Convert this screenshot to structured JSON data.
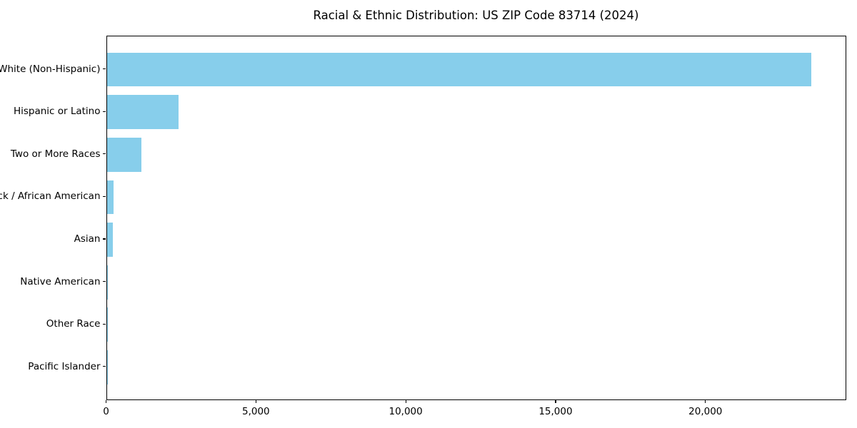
{
  "chart_data": {
    "type": "bar",
    "orientation": "horizontal",
    "title": "Racial & Ethnic Distribution: US ZIP Code 83714 (2024)",
    "categories": [
      "White (Non-Hispanic)",
      "Hispanic or Latino",
      "Two or More Races",
      "Black / African American",
      "Asian",
      "Native American",
      "Other Race",
      "Pacific Islander"
    ],
    "values": [
      23500,
      2400,
      1150,
      220,
      195,
      20,
      15,
      10
    ],
    "xlabel": "",
    "ylabel": "",
    "xlim": [
      0,
      24700
    ],
    "x_ticks": [
      0,
      5000,
      10000,
      15000,
      20000
    ],
    "x_tick_labels": [
      "0",
      "5,000",
      "10,000",
      "15,000",
      "20,000"
    ],
    "bar_color": "#87CEEB",
    "text_color": "#000000",
    "grid": false,
    "legend": null
  }
}
